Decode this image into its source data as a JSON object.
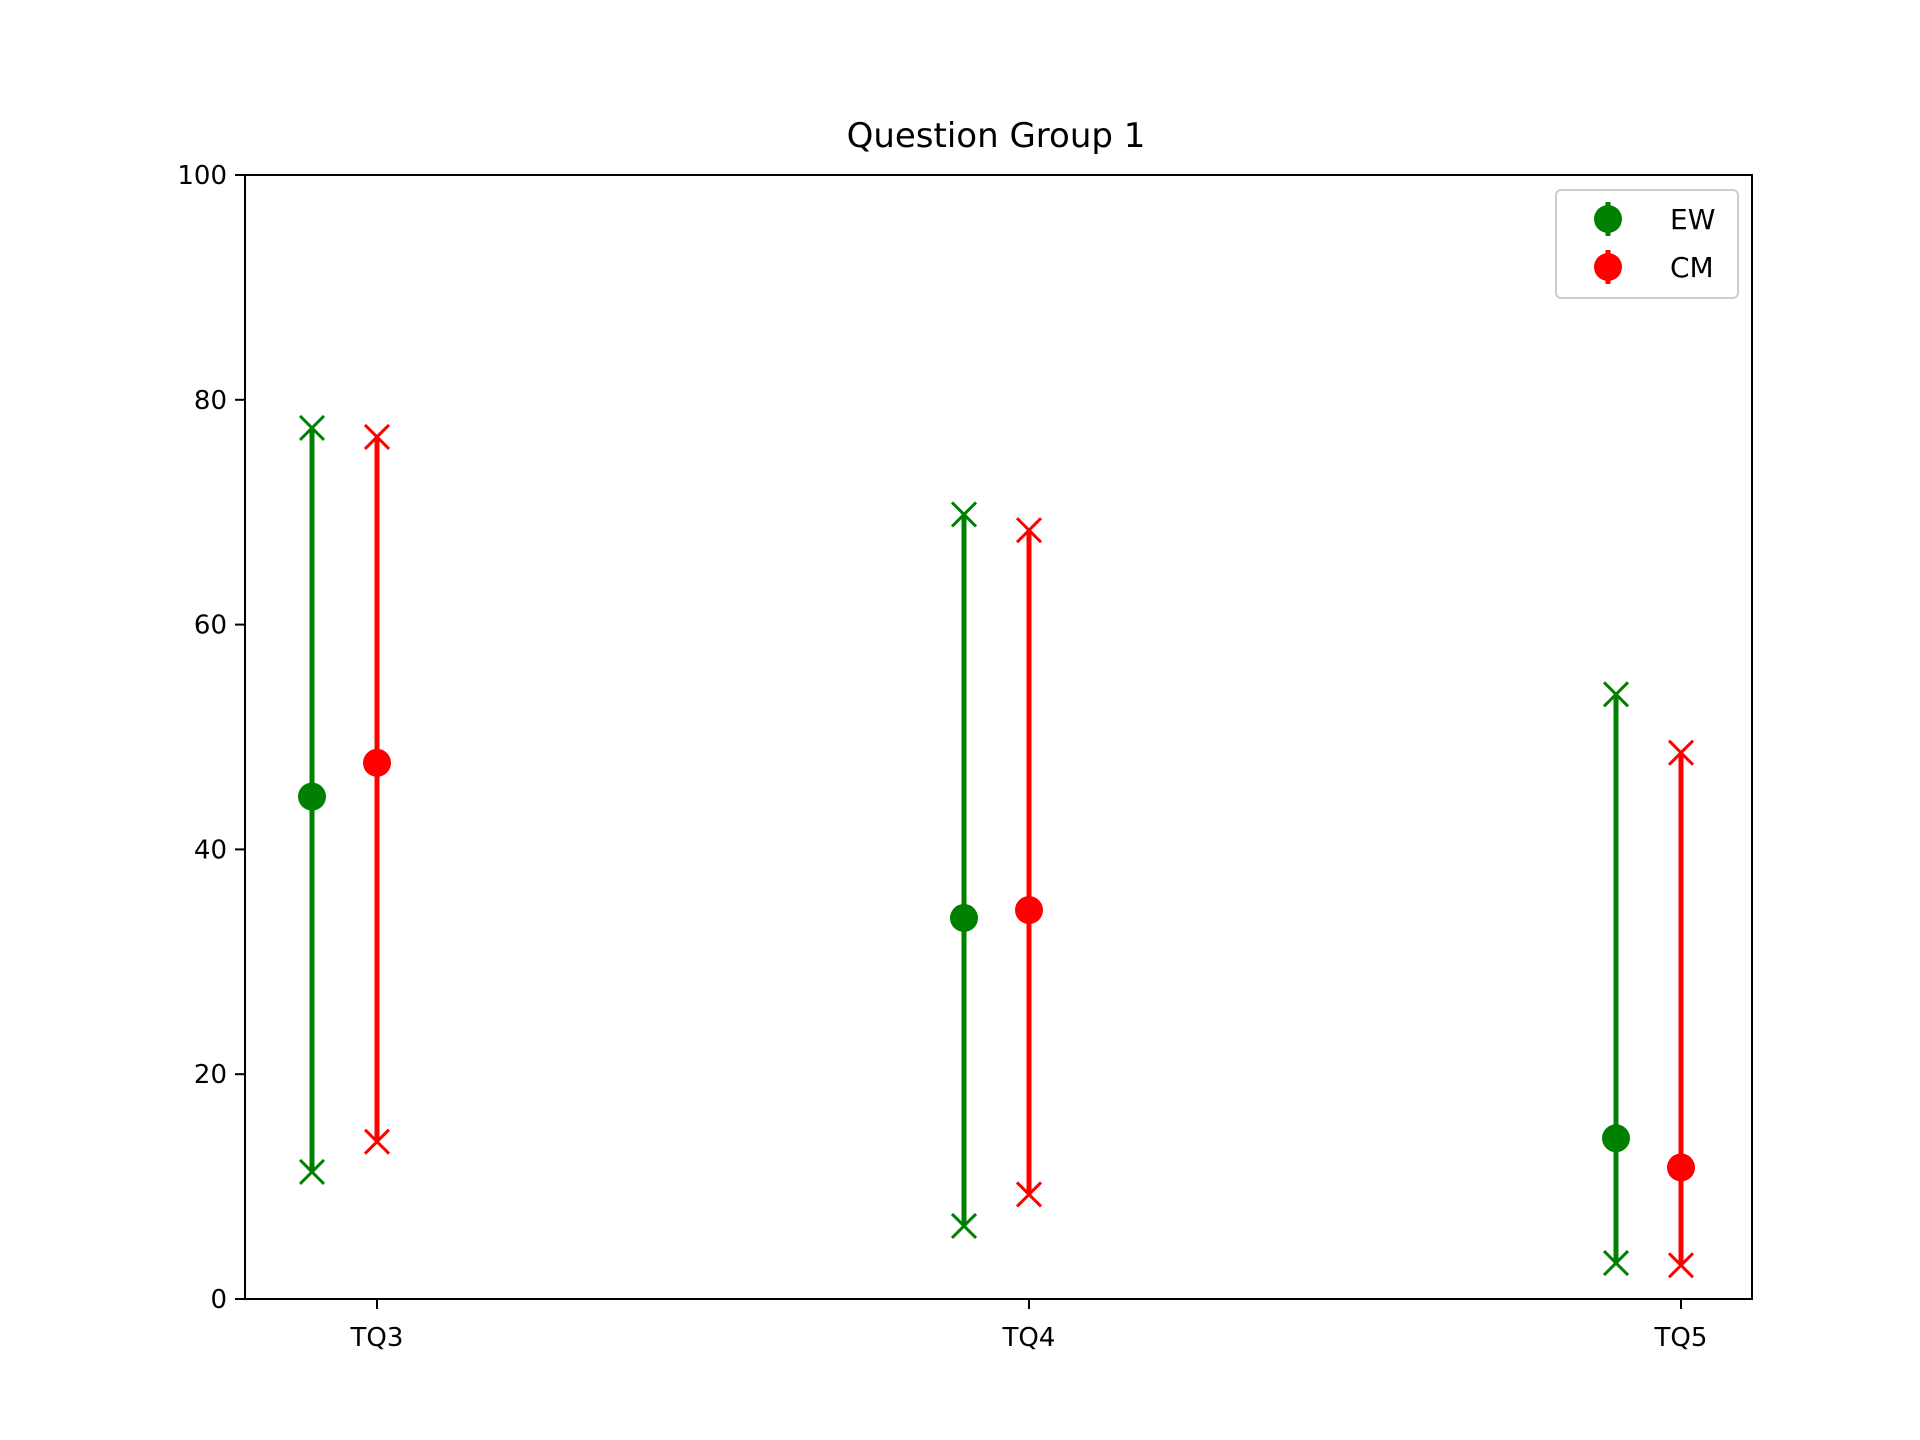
{
  "chart_data": {
    "type": "errorbar",
    "title": "Question Group 1",
    "xlabel": "",
    "ylabel": "",
    "categories": [
      "TQ3",
      "TQ4",
      "TQ5"
    ],
    "ylim": [
      0,
      100
    ],
    "yticks": [
      0,
      20,
      40,
      60,
      80,
      100
    ],
    "grid": false,
    "legend_position": "top-right",
    "series": [
      {
        "name": "EW",
        "color": "#008000",
        "values": [
          44.7,
          33.9,
          14.3
        ],
        "lower": [
          11.3,
          6.5,
          3.2
        ],
        "upper": [
          77.5,
          69.8,
          53.8
        ]
      },
      {
        "name": "CM",
        "color": "#ff0000",
        "values": [
          47.7,
          34.6,
          11.7
        ],
        "lower": [
          14.0,
          9.3,
          3.0
        ],
        "upper": [
          76.7,
          68.4,
          48.6
        ]
      }
    ]
  }
}
